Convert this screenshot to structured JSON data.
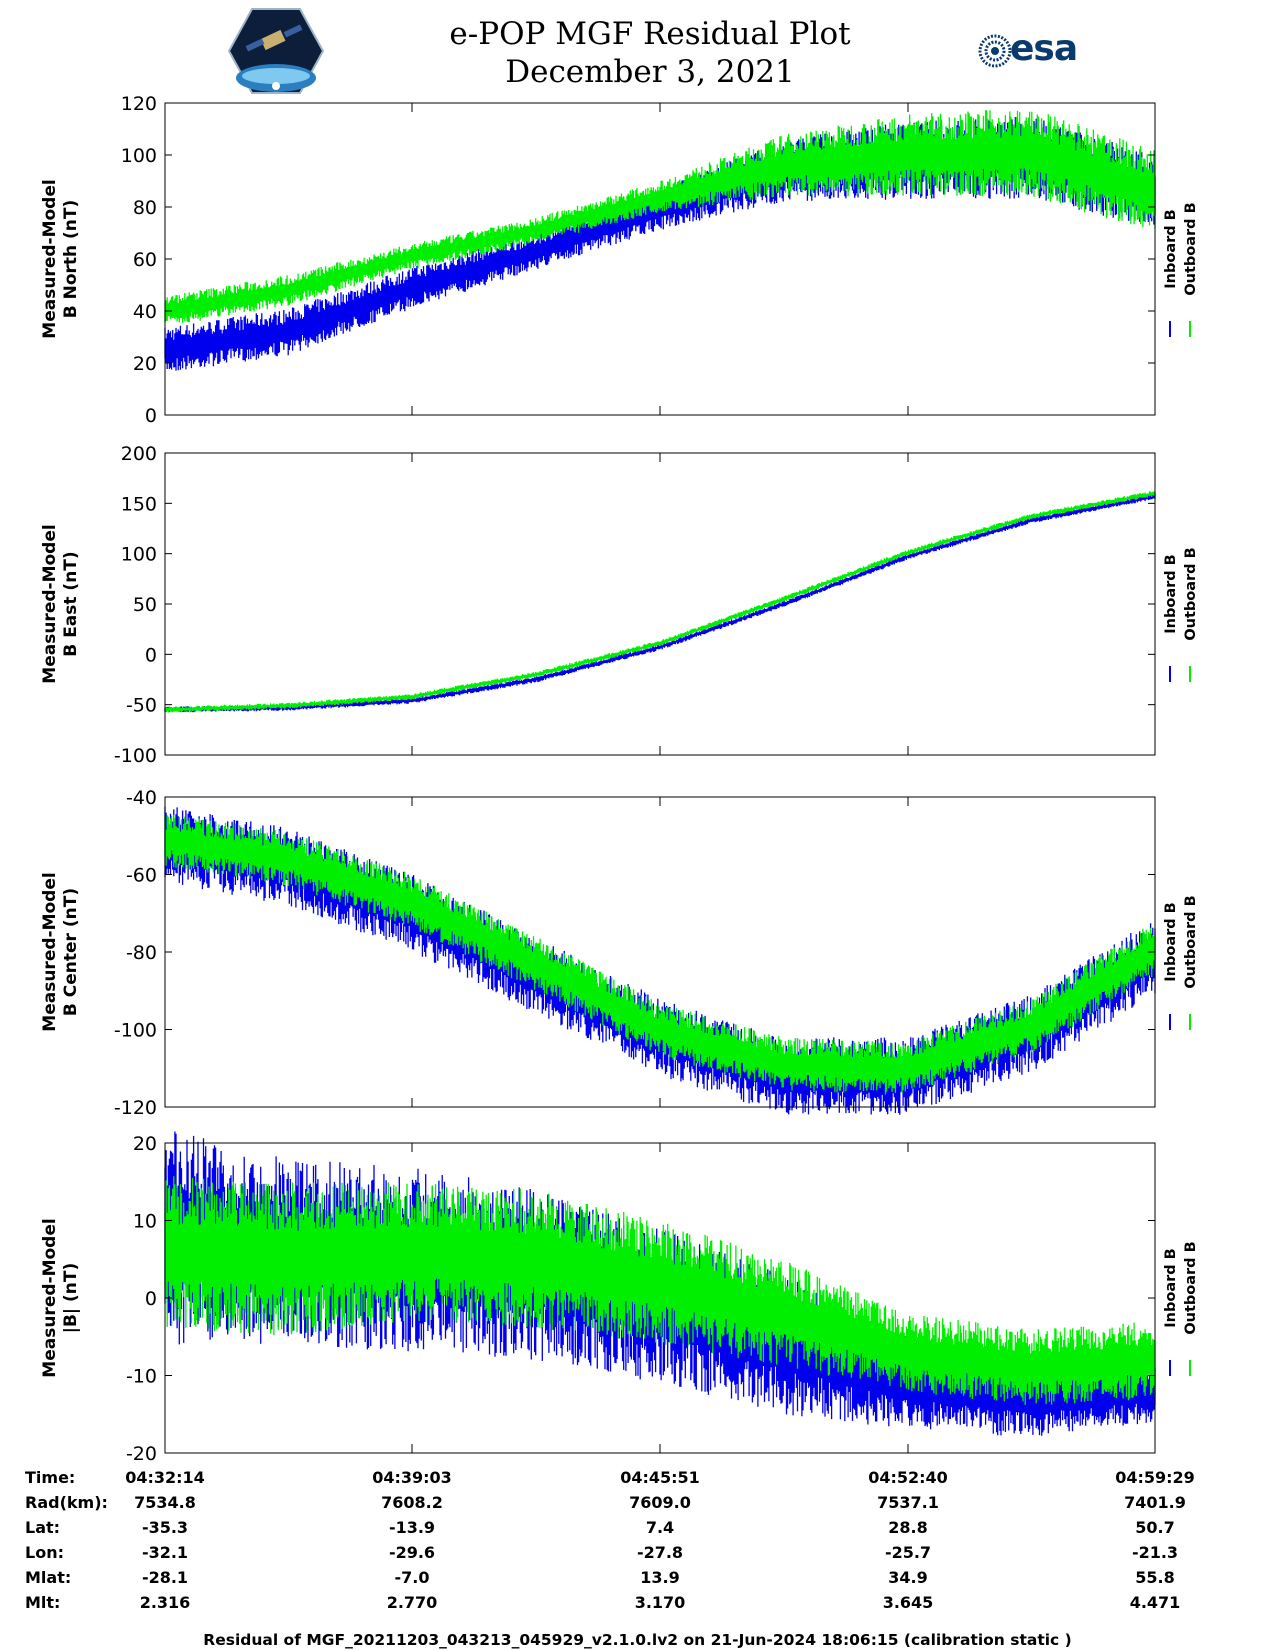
{
  "header": {
    "title_line1": "e-POP MGF Residual Plot",
    "title_line2": "December 3, 2021",
    "left_logo": "satellite-mission-logo",
    "right_logo": "esa"
  },
  "chart_data": [
    {
      "type": "line",
      "ylabel_line1": "Measured-Model",
      "ylabel_line2": "B North (nT)",
      "ylim": [
        0,
        120
      ],
      "yticks": [
        0,
        20,
        40,
        60,
        80,
        100,
        120
      ],
      "x": [
        "04:32:14",
        "04:35:38",
        "04:39:03",
        "04:42:27",
        "04:45:51",
        "04:49:15",
        "04:52:40",
        "04:56:04",
        "04:59:29"
      ],
      "series": [
        {
          "name": "Inboard B",
          "color": "#0000ee",
          "values": [
            25,
            32,
            49,
            63,
            79,
            94,
            98,
            99,
            86
          ],
          "spread": [
            9,
            9,
            8,
            7,
            8,
            12,
            15,
            16,
            14
          ]
        },
        {
          "name": "Outboard B",
          "color": "#00ee00",
          "values": [
            40,
            48,
            61,
            71,
            84,
            96,
            100,
            101,
            86
          ],
          "spread": [
            6,
            6,
            5,
            5,
            6,
            12,
            16,
            17,
            16
          ]
        }
      ]
    },
    {
      "type": "line",
      "ylabel_line1": "Measured-Model",
      "ylabel_line2": "B East (nT)",
      "ylim": [
        -100,
        200
      ],
      "yticks": [
        -100,
        -50,
        0,
        50,
        100,
        150,
        200
      ],
      "x": [
        "04:32:14",
        "04:35:38",
        "04:39:03",
        "04:42:27",
        "04:45:51",
        "04:49:15",
        "04:52:40",
        "04:56:04",
        "04:59:29"
      ],
      "series": [
        {
          "name": "Inboard B",
          "color": "#0000ee",
          "values": [
            -55,
            -53,
            -46,
            -25,
            7,
            50,
            97,
            133,
            157
          ],
          "spread": [
            3,
            3,
            3,
            3,
            3,
            3,
            3,
            3,
            3
          ]
        },
        {
          "name": "Outboard B",
          "color": "#00ee00",
          "values": [
            -55,
            -51,
            -42,
            -20,
            11,
            55,
            101,
            137,
            160
          ],
          "spread": [
            3,
            3,
            3,
            3,
            3,
            3,
            3,
            3,
            3
          ]
        }
      ]
    },
    {
      "type": "line",
      "ylabel_line1": "Measured-Model",
      "ylabel_line2": "B Center (nT)",
      "ylim": [
        -120,
        -40
      ],
      "yticks": [
        -120,
        -100,
        -80,
        -60,
        -40
      ],
      "x": [
        "04:32:14",
        "04:35:38",
        "04:39:03",
        "04:42:27",
        "04:45:51",
        "04:49:15",
        "04:52:40",
        "04:56:04",
        "04:59:29"
      ],
      "series": [
        {
          "name": "Inboard B",
          "color": "#0000ee",
          "values": [
            -52,
            -58,
            -70,
            -86,
            -102,
            -112,
            -112,
            -101,
            -81
          ],
          "spread": [
            10,
            10,
            10,
            10,
            10,
            10,
            10,
            10,
            10
          ]
        },
        {
          "name": "Outboard B",
          "color": "#00ee00",
          "values": [
            -51,
            -56,
            -67,
            -83,
            -100,
            -109,
            -110,
            -99,
            -79
          ],
          "spread": [
            7,
            7,
            7,
            7,
            7,
            7,
            7,
            7,
            7
          ]
        }
      ]
    },
    {
      "type": "line",
      "ylabel_line1": "Measured-Model",
      "ylabel_line2": "|B| (nT)",
      "ylim": [
        -20,
        20
      ],
      "yticks": [
        -20,
        -10,
        0,
        10,
        20
      ],
      "x": [
        "04:32:14",
        "04:35:38",
        "04:39:03",
        "04:42:27",
        "04:45:51",
        "04:49:15",
        "04:52:40",
        "04:56:04",
        "04:59:29"
      ],
      "series": [
        {
          "name": "Inboard B",
          "color": "#0000ee",
          "values": [
            8,
            6,
            5,
            3,
            -1,
            -6,
            -11,
            -13,
            -12
          ],
          "spread": [
            14,
            12,
            12,
            11,
            10,
            9,
            6,
            5,
            4
          ]
        },
        {
          "name": "Outboard B",
          "color": "#00ee00",
          "values": [
            6,
            5,
            6,
            5,
            2,
            -2,
            -7,
            -9,
            -8
          ],
          "spread": [
            10,
            10,
            9,
            9,
            8,
            7,
            5,
            5,
            5
          ]
        }
      ]
    }
  ],
  "legend": [
    "Inboard B",
    "Outboard B"
  ],
  "ephemeris": {
    "labels": [
      "Time:",
      "Rad(km):",
      "Lat:",
      "Lon:",
      "Mlat:",
      "Mlt:"
    ],
    "columns": [
      [
        "04:32:14",
        "7534.8",
        "-35.3",
        "-32.1",
        "-28.1",
        "2.316"
      ],
      [
        "04:39:03",
        "7608.2",
        "-13.9",
        "-29.6",
        "-7.0",
        "2.770"
      ],
      [
        "04:45:51",
        "7609.0",
        "7.4",
        "-27.8",
        "13.9",
        "3.170"
      ],
      [
        "04:52:40",
        "7537.1",
        "28.8",
        "-25.7",
        "34.9",
        "3.645"
      ],
      [
        "04:59:29",
        "7401.9",
        "50.7",
        "-21.3",
        "55.8",
        "4.471"
      ]
    ]
  },
  "footer": "Residual of MGF_20211203_043213_045929_v2.1.0.lv2 on 21-Jun-2024 18:06:15 (calibration static )"
}
